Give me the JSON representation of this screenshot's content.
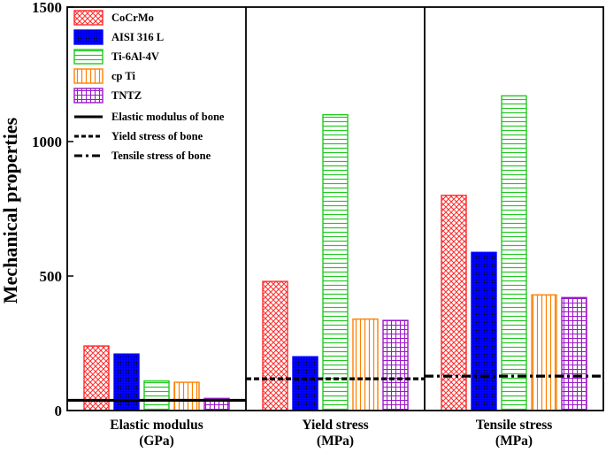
{
  "chart_data": {
    "type": "bar",
    "ylabel": "Mechanical properties",
    "xlabel": "",
    "ylim": [
      0,
      1500
    ],
    "yticks": [
      "0",
      "500",
      "1000",
      "1500"
    ],
    "categories": [
      {
        "line1": "Elastic modulus",
        "line2": "(GPa)"
      },
      {
        "line1": "Yield stress",
        "line2": "(MPa)"
      },
      {
        "line1": "Tensile stress",
        "line2": "(MPa)"
      }
    ],
    "series": [
      {
        "name": "CoCrMo",
        "color": "#ff2a2a",
        "pattern": "crosshatch",
        "values": [
          240,
          480,
          800
        ]
      },
      {
        "name": "AISI 316 L",
        "color": "#0000ff",
        "pattern": "dots",
        "values": [
          210,
          200,
          588
        ]
      },
      {
        "name": "Ti-6Al-4V",
        "color": "#22c922",
        "pattern": "horizontal",
        "values": [
          110,
          1100,
          1170
        ]
      },
      {
        "name": "cp Ti",
        "color": "#ff8000",
        "pattern": "vertical",
        "values": [
          105,
          340,
          430
        ]
      },
      {
        "name": "TNTZ",
        "color": "#9b18c8",
        "pattern": "grid",
        "values": [
          45,
          335,
          420
        ]
      }
    ],
    "reference_lines": [
      {
        "name": "Elastic modulus of bone",
        "style": "solid",
        "category": 0,
        "value": 38
      },
      {
        "name": "Yield stress of bone",
        "style": "dashed",
        "category": 1,
        "value": 118
      },
      {
        "name": "Tensile stress of bone",
        "style": "dashdot",
        "category": 2,
        "value": 128
      }
    ],
    "legend_position": "top-left"
  }
}
